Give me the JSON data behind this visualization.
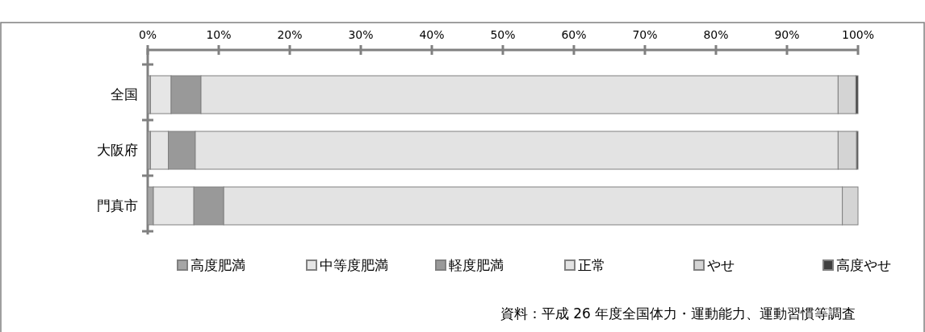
{
  "chart_data": {
    "type": "bar",
    "orientation": "horizontal",
    "stacked": true,
    "categories": [
      "全国",
      "大阪府",
      "門真市"
    ],
    "series": [
      {
        "name": "高度肥満",
        "color": "#a6a6a6",
        "values": [
          0.4,
          0.4,
          0.8
        ]
      },
      {
        "name": "中等度肥満",
        "color": "#e6e6e6",
        "values": [
          2.9,
          2.5,
          5.7
        ]
      },
      {
        "name": "軽度肥満",
        "color": "#999999",
        "values": [
          4.2,
          3.8,
          4.2
        ]
      },
      {
        "name": "正常",
        "color": "#e3e3e3",
        "values": [
          89.7,
          90.5,
          87.1
        ]
      },
      {
        "name": "やせ",
        "color": "#d4d4d4",
        "values": [
          2.5,
          2.6,
          2.2
        ]
      },
      {
        "name": "高度やせ",
        "color": "#404040",
        "values": [
          0.3,
          0.2,
          0
        ]
      }
    ],
    "xlim": [
      0,
      100
    ],
    "xticks": [
      {
        "value": 0,
        "label": "0%"
      },
      {
        "value": 10,
        "label": "10%"
      },
      {
        "value": 20,
        "label": "20%"
      },
      {
        "value": 30,
        "label": "30%"
      },
      {
        "value": 40,
        "label": "40%"
      },
      {
        "value": 50,
        "label": "50%"
      },
      {
        "value": 60,
        "label": "60%"
      },
      {
        "value": 70,
        "label": "70%"
      },
      {
        "value": 80,
        "label": "80%"
      },
      {
        "value": 90,
        "label": "90%"
      },
      {
        "value": 100,
        "label": "100%"
      }
    ],
    "legend": "bottom",
    "annotations": [
      "資料：平成 26 年度全国体力・運動能力、運動習慣等調査"
    ]
  }
}
